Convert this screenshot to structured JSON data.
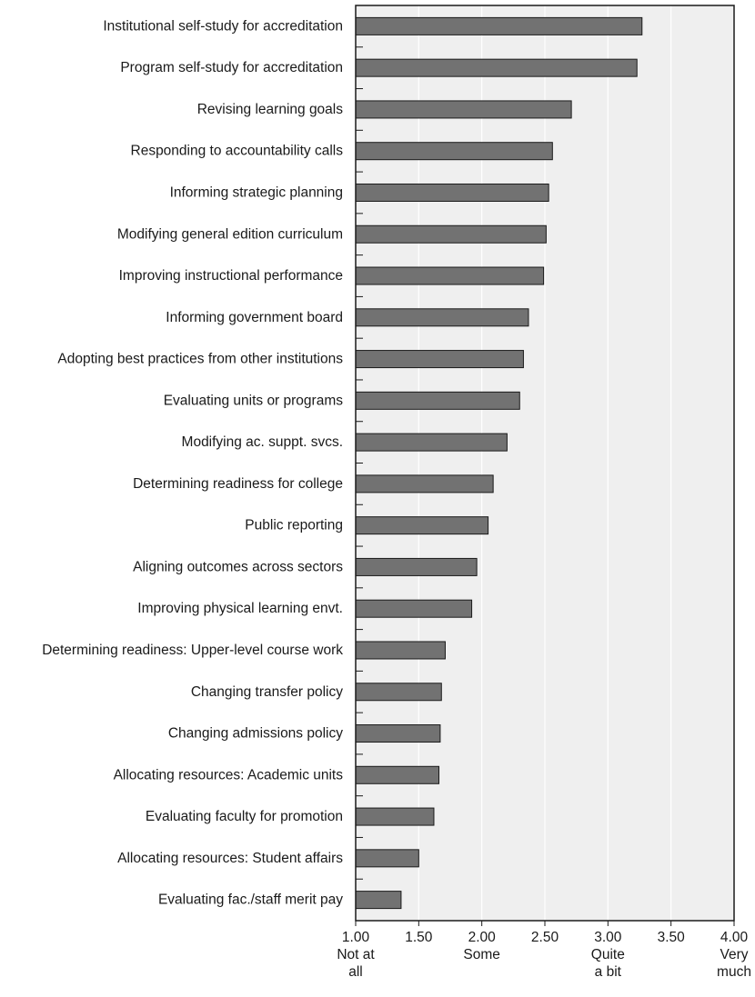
{
  "chart_data": {
    "type": "bar",
    "orientation": "horizontal",
    "categories": [
      "Institutional self-study for accreditation",
      "Program self-study for accreditation",
      "Revising learning goals",
      "Responding to accountability calls",
      "Informing strategic planning",
      "Modifying general edition curriculum",
      "Improving instructional performance",
      "Informing government board",
      "Adopting best practices from other institutions",
      "Evaluating units or programs",
      "Modifying ac. suppt. svcs.",
      "Determining readiness for college",
      "Public reporting",
      "Aligning outcomes across sectors",
      "Improving physical learning envt.",
      "Determining readiness: Upper-level course work",
      "Changing transfer policy",
      "Changing admissions policy",
      "Allocating resources: Academic units",
      "Evaluating faculty for promotion",
      "Allocating resources: Student affairs",
      "Evaluating fac./staff merit pay"
    ],
    "values": [
      3.27,
      3.23,
      2.71,
      2.56,
      2.53,
      2.51,
      2.49,
      2.37,
      2.33,
      2.3,
      2.2,
      2.09,
      2.05,
      1.96,
      1.92,
      1.71,
      1.68,
      1.67,
      1.66,
      1.62,
      1.5,
      1.36
    ],
    "xlim": [
      1.0,
      4.0
    ],
    "xticks": [
      {
        "value": 1.0,
        "label": "1.00",
        "sublabel": [
          "Not at",
          "all"
        ]
      },
      {
        "value": 1.5,
        "label": "1.50",
        "sublabel": []
      },
      {
        "value": 2.0,
        "label": "2.00",
        "sublabel": [
          "Some"
        ]
      },
      {
        "value": 2.5,
        "label": "2.50",
        "sublabel": []
      },
      {
        "value": 3.0,
        "label": "3.00",
        "sublabel": [
          "Quite",
          "a bit"
        ]
      },
      {
        "value": 3.5,
        "label": "3.50",
        "sublabel": []
      },
      {
        "value": 4.0,
        "label": "4.00",
        "sublabel": [
          "Very",
          "much"
        ]
      }
    ],
    "title": "",
    "xlabel": "",
    "ylabel": "",
    "grid": true,
    "colors": {
      "bar": "#727272",
      "bar_outline": "#1a1a1a",
      "plot_background": "#efefef",
      "gridline": "#ffffff",
      "axis": "#1a1a1a"
    }
  }
}
